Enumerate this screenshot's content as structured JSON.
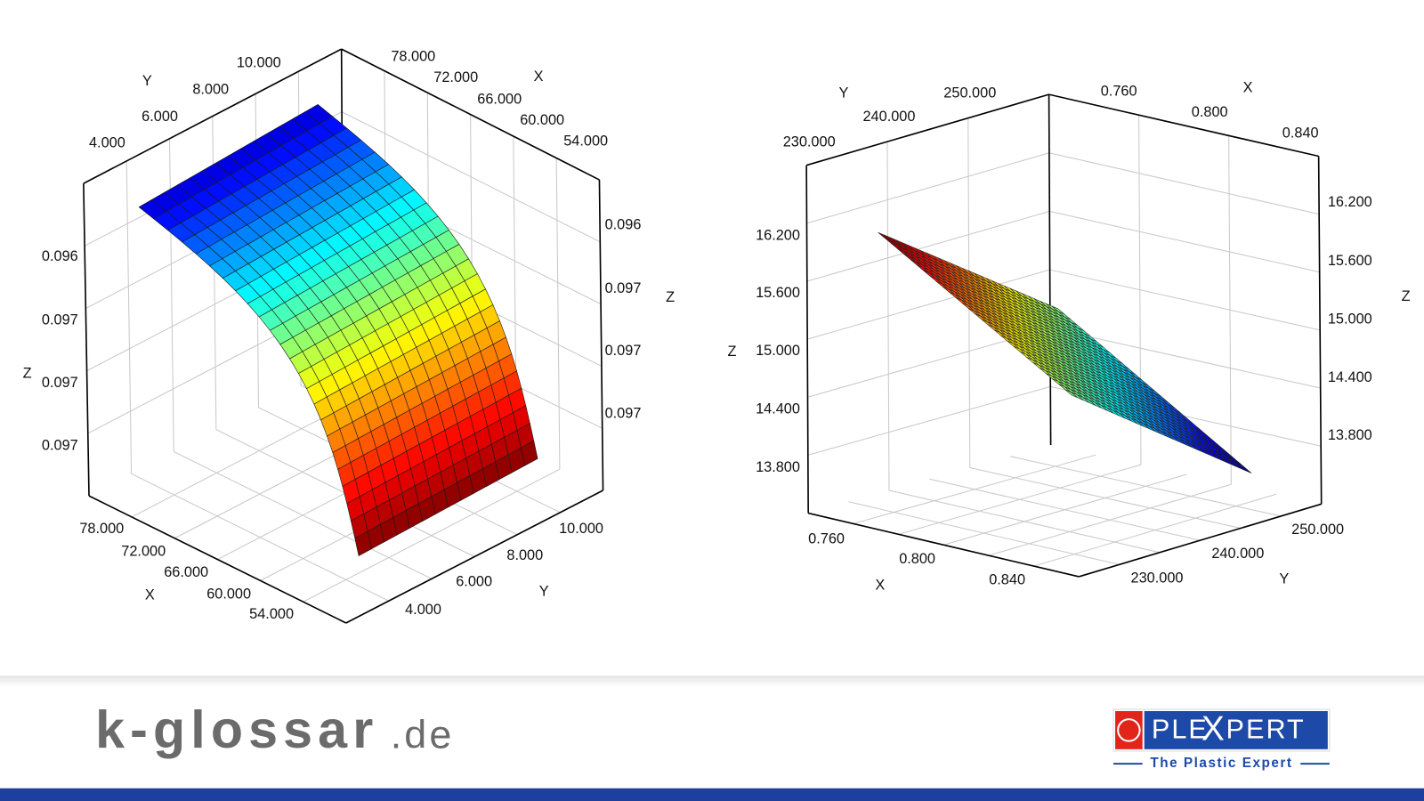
{
  "plots": [
    {
      "x_label": "X",
      "y_label": "Y",
      "z_label": "Z",
      "x_ticks": [
        "78.000",
        "72.000",
        "66.000",
        "60.000",
        "54.000"
      ],
      "y_ticks": [
        "4.000",
        "6.000",
        "8.000",
        "10.000"
      ],
      "z_ticks": [
        "0.096",
        "0.097",
        "0.097",
        "0.097"
      ]
    },
    {
      "x_label": "X",
      "y_label": "Y",
      "z_label": "Z",
      "x_ticks": [
        "0.760",
        "0.800",
        "0.840"
      ],
      "y_ticks": [
        "230.000",
        "240.000",
        "250.000"
      ],
      "z_ticks": [
        "13.800",
        "14.400",
        "15.000",
        "15.600",
        "16.200"
      ]
    }
  ],
  "footer": {
    "site": "k-glossar",
    "domain": ".de",
    "logo_left": "PLE",
    "logo_mid": "X",
    "logo_right": "PERT",
    "tagline": "The Plastic Expert"
  }
}
